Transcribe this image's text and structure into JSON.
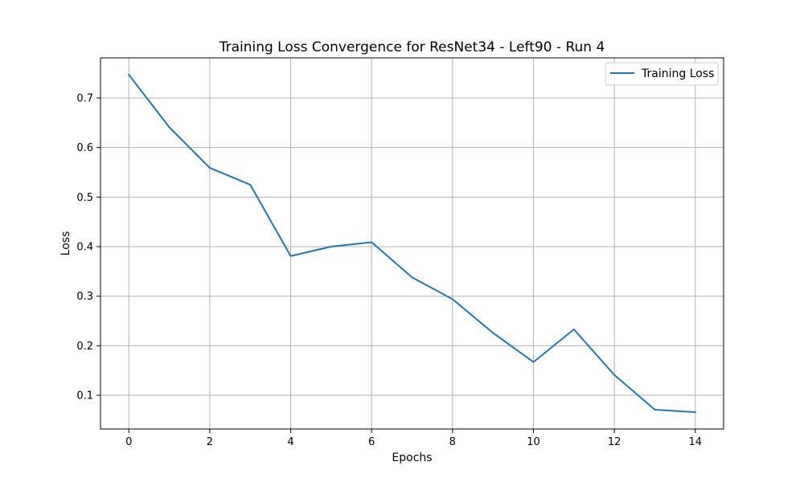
{
  "chart_data": {
    "type": "line",
    "title": "Training Loss Convergence for ResNet34 - Left90 - Run 4",
    "xlabel": "Epochs",
    "ylabel": "Loss",
    "xlim": [
      -0.7,
      14.7
    ],
    "ylim": [
      0.032,
      0.781
    ],
    "xticks": [
      0,
      2,
      4,
      6,
      8,
      10,
      12,
      14
    ],
    "yticks": [
      0.1,
      0.2,
      0.3,
      0.4,
      0.5,
      0.6,
      0.7
    ],
    "grid": true,
    "legend_position": "upper right",
    "series": [
      {
        "name": "Training Loss",
        "color": "#1f77b4",
        "x": [
          0,
          1,
          2,
          3,
          4,
          5,
          6,
          7,
          8,
          9,
          10,
          11,
          12,
          13,
          14
        ],
        "y": [
          0.747,
          0.641,
          0.559,
          0.525,
          0.381,
          0.4,
          0.409,
          0.338,
          0.294,
          0.226,
          0.167,
          0.233,
          0.141,
          0.071,
          0.066
        ]
      }
    ]
  }
}
